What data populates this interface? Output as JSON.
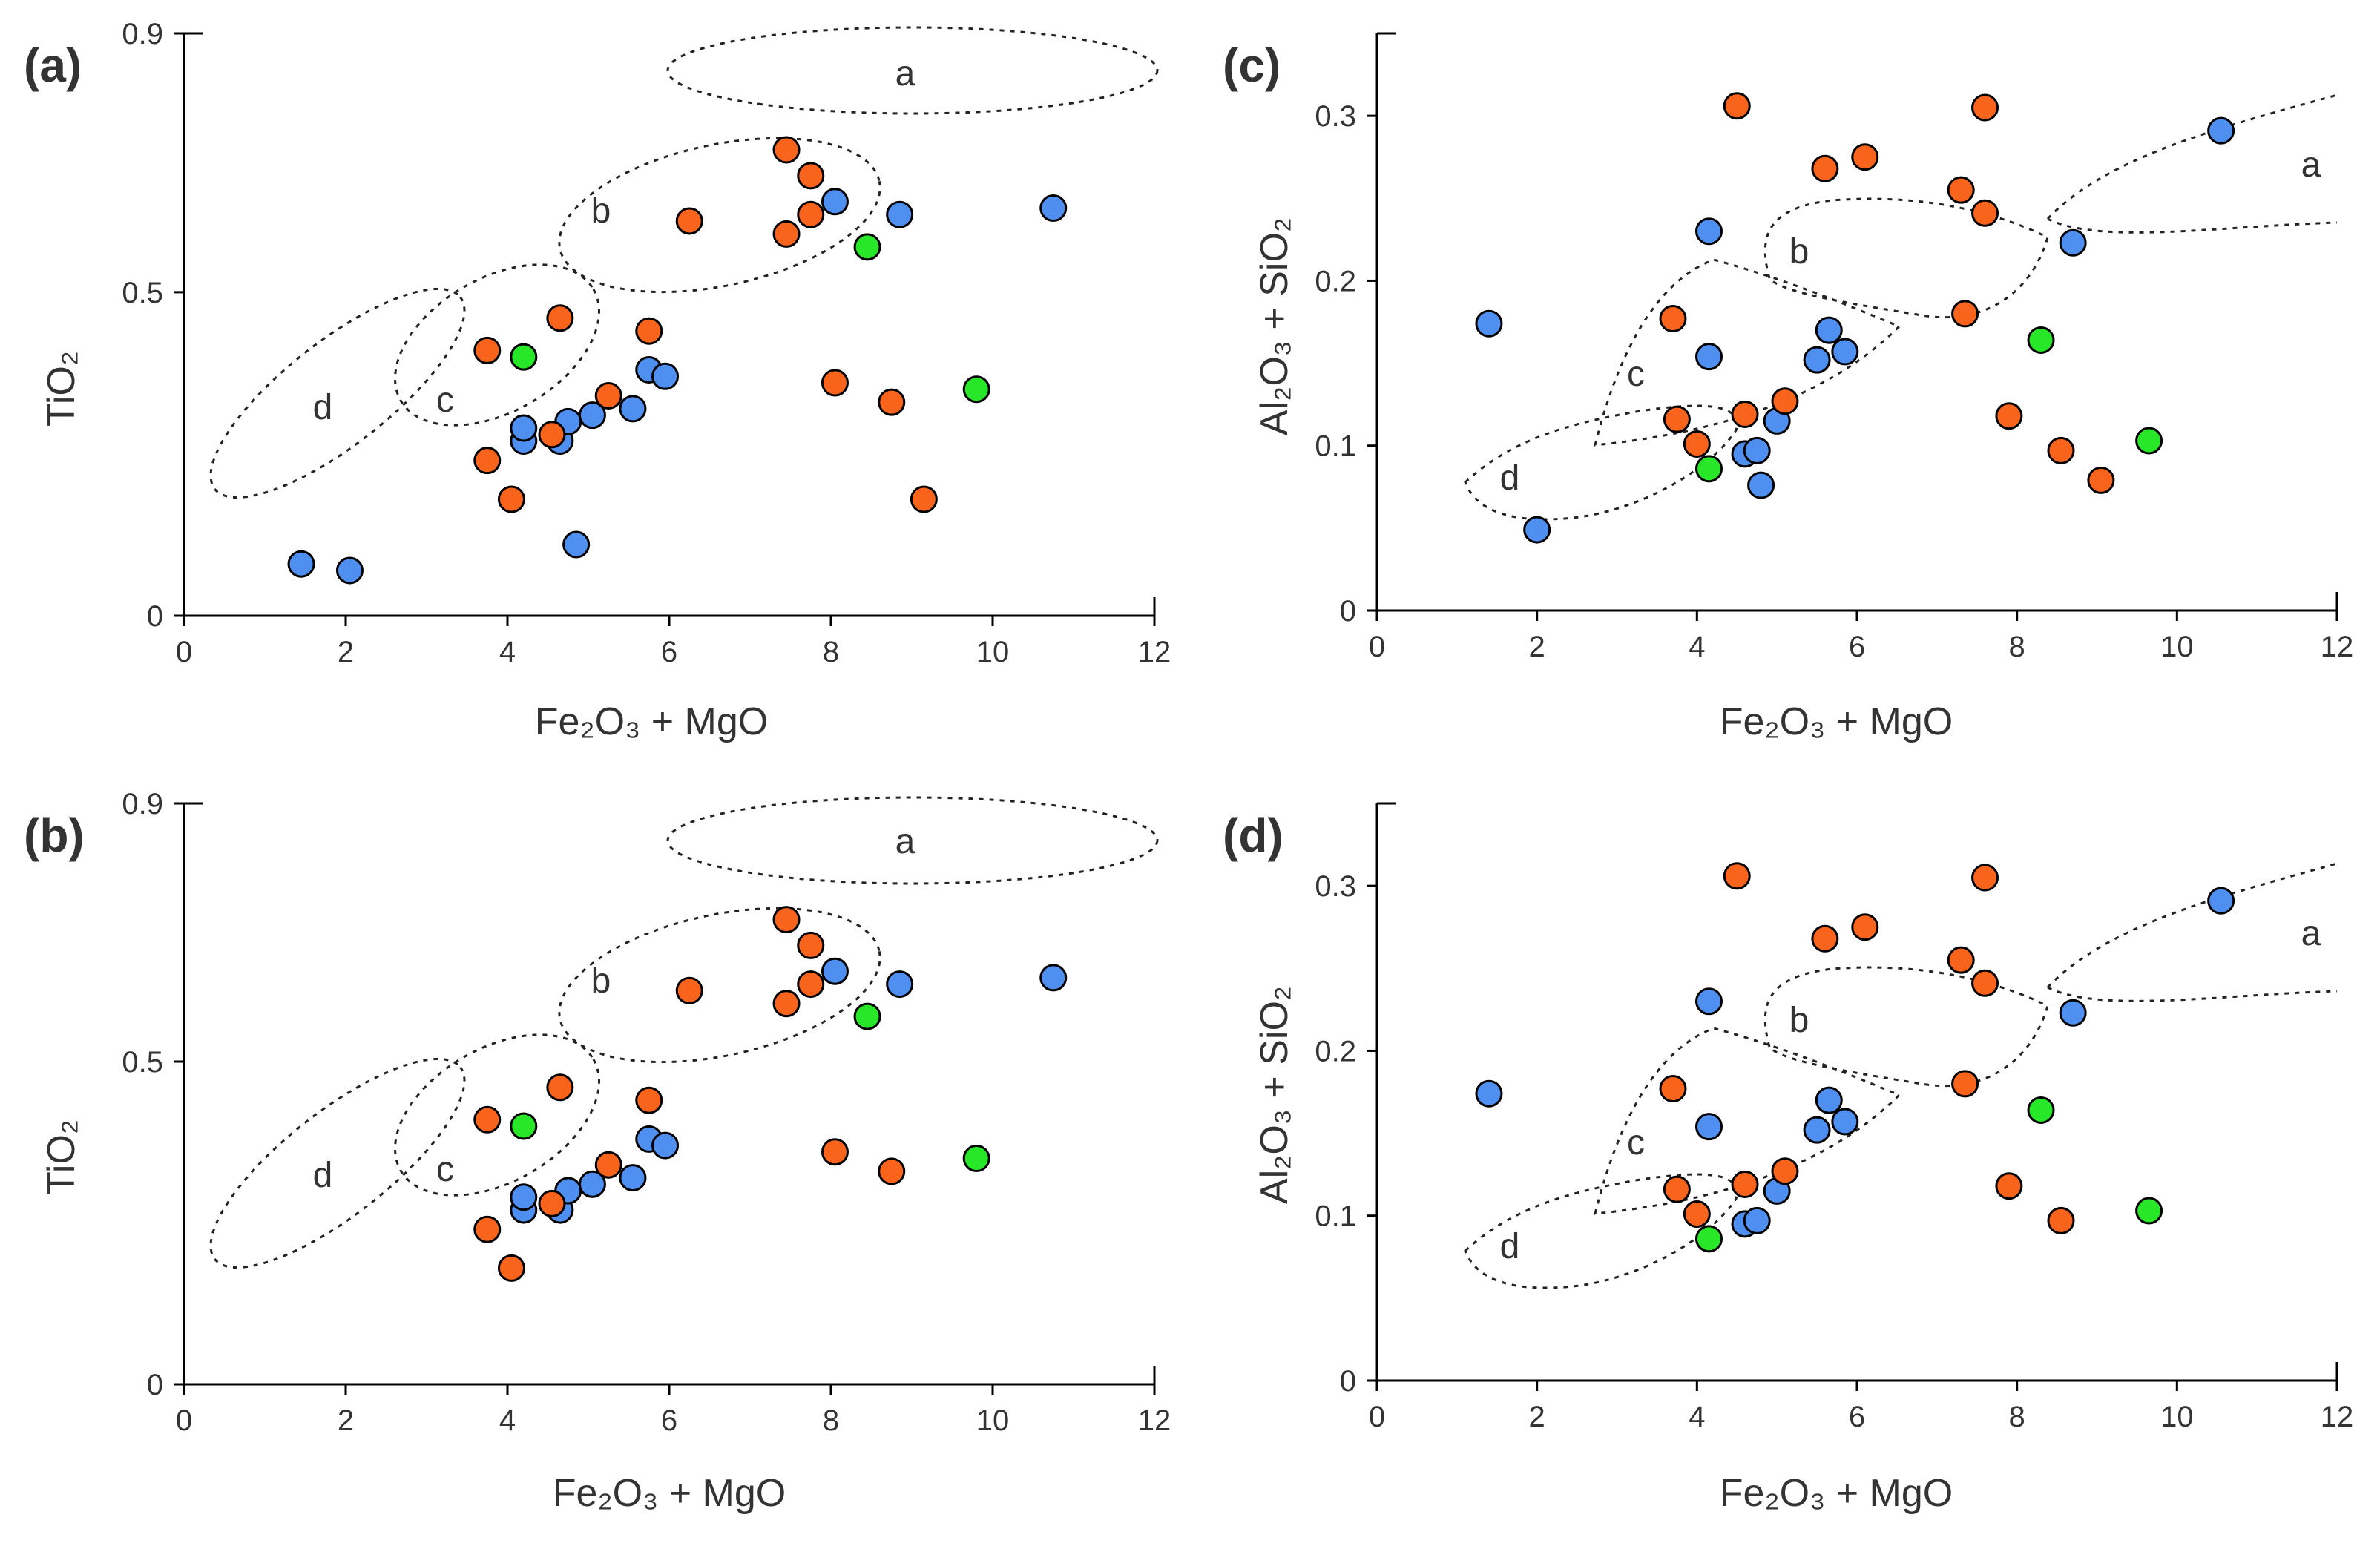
{
  "colors": {
    "blue": "#4f8ff0",
    "orange": "#f9641c",
    "green": "#28e628"
  },
  "chart_data": [
    {
      "type": "scatter",
      "panel": "(a)",
      "xlabel": "Fe₂O₃ + MgO",
      "ylabel": "TiO₂",
      "xlim": [
        0,
        12
      ],
      "ylim": [
        0,
        0.9
      ],
      "xticks": [
        0,
        2,
        4,
        6,
        8,
        10,
        12
      ],
      "yticks": [
        0,
        0.5,
        0.9
      ],
      "tick_labels_x": [
        "0",
        "2",
        "4",
        "6",
        "8",
        "10",
        "12"
      ],
      "tick_labels_y": [
        "0",
        "0.5",
        "0.9"
      ],
      "fields": [
        "a",
        "b",
        "c",
        "d"
      ],
      "series": [
        {
          "color": "blue",
          "points": [
            [
              1.45,
              0.08
            ],
            [
              2.05,
              0.07
            ],
            [
              4.2,
              0.27
            ],
            [
              4.2,
              0.29
            ],
            [
              4.65,
              0.27
            ],
            [
              4.75,
              0.3
            ],
            [
              5.05,
              0.31
            ],
            [
              5.55,
              0.32
            ],
            [
              5.75,
              0.38
            ],
            [
              5.95,
              0.37
            ],
            [
              4.85,
              0.11
            ],
            [
              8.05,
              0.64
            ],
            [
              8.85,
              0.62
            ],
            [
              10.75,
              0.63
            ]
          ]
        },
        {
          "color": "orange",
          "points": [
            [
              3.75,
              0.41
            ],
            [
              3.75,
              0.24
            ],
            [
              4.05,
              0.18
            ],
            [
              4.55,
              0.28
            ],
            [
              4.65,
              0.46
            ],
            [
              5.25,
              0.34
            ],
            [
              5.75,
              0.44
            ],
            [
              6.25,
              0.61
            ],
            [
              7.45,
              0.59
            ],
            [
              7.45,
              0.72
            ],
            [
              7.75,
              0.68
            ],
            [
              7.75,
              0.62
            ],
            [
              8.05,
              0.36
            ],
            [
              8.75,
              0.33
            ],
            [
              9.15,
              0.18
            ]
          ]
        },
        {
          "color": "green",
          "points": [
            [
              4.2,
              0.4
            ],
            [
              8.45,
              0.57
            ],
            [
              9.8,
              0.35
            ]
          ]
        }
      ]
    },
    {
      "type": "scatter",
      "panel": "(b)",
      "xlabel": "Fe₂O₃ + MgO",
      "ylabel": "TiO₂",
      "xlim": [
        0,
        12
      ],
      "ylim": [
        0,
        0.9
      ],
      "xticks": [
        0,
        2,
        4,
        6,
        8,
        10,
        12
      ],
      "yticks": [
        0,
        0.5,
        0.9
      ],
      "tick_labels_x": [
        "0",
        "2",
        "4",
        "6",
        "8",
        "10",
        "12"
      ],
      "tick_labels_y": [
        "0",
        "0.5",
        "0.9"
      ],
      "fields": [
        "a",
        "b",
        "c",
        "d"
      ],
      "series": [
        {
          "color": "blue",
          "points": [
            [
              4.2,
              0.27
            ],
            [
              4.2,
              0.29
            ],
            [
              4.65,
              0.27
            ],
            [
              4.75,
              0.3
            ],
            [
              5.05,
              0.31
            ],
            [
              5.55,
              0.32
            ],
            [
              5.75,
              0.38
            ],
            [
              5.95,
              0.37
            ],
            [
              8.05,
              0.64
            ],
            [
              8.85,
              0.62
            ],
            [
              10.75,
              0.63
            ]
          ]
        },
        {
          "color": "orange",
          "points": [
            [
              3.75,
              0.41
            ],
            [
              3.75,
              0.24
            ],
            [
              4.05,
              0.18
            ],
            [
              4.55,
              0.28
            ],
            [
              4.65,
              0.46
            ],
            [
              5.25,
              0.34
            ],
            [
              5.75,
              0.44
            ],
            [
              6.25,
              0.61
            ],
            [
              7.45,
              0.59
            ],
            [
              7.45,
              0.72
            ],
            [
              7.75,
              0.68
            ],
            [
              7.75,
              0.62
            ],
            [
              8.05,
              0.36
            ],
            [
              8.75,
              0.33
            ]
          ]
        },
        {
          "color": "green",
          "points": [
            [
              4.2,
              0.4
            ],
            [
              8.45,
              0.57
            ],
            [
              9.8,
              0.35
            ]
          ]
        }
      ]
    },
    {
      "type": "scatter",
      "panel": "(c)",
      "xlabel": "Fe₂O₃ + MgO",
      "ylabel": "Al₂O₃ + SiO₂",
      "xlim": [
        0,
        12
      ],
      "ylim": [
        0,
        0.35
      ],
      "xticks": [
        0,
        2,
        4,
        6,
        8,
        10,
        12
      ],
      "yticks": [
        0,
        0.1,
        0.2,
        0.3
      ],
      "tick_labels_x": [
        "0",
        "2",
        "4",
        "6",
        "8",
        "10",
        "12"
      ],
      "tick_labels_y": [
        "0",
        "0.1",
        "0.2",
        "0.3"
      ],
      "fields": [
        "a",
        "b",
        "c",
        "d"
      ],
      "series": [
        {
          "color": "blue",
          "points": [
            [
              1.4,
              0.174
            ],
            [
              2.0,
              0.049
            ],
            [
              4.15,
              0.23
            ],
            [
              4.15,
              0.154
            ],
            [
              4.6,
              0.095
            ],
            [
              4.75,
              0.097
            ],
            [
              4.8,
              0.076
            ],
            [
              5.0,
              0.115
            ],
            [
              5.5,
              0.152
            ],
            [
              5.65,
              0.17
            ],
            [
              5.85,
              0.157
            ],
            [
              8.7,
              0.223
            ],
            [
              10.55,
              0.291
            ]
          ]
        },
        {
          "color": "orange",
          "points": [
            [
              3.7,
              0.177
            ],
            [
              3.75,
              0.116
            ],
            [
              4.0,
              0.101
            ],
            [
              4.5,
              0.306
            ],
            [
              4.6,
              0.119
            ],
            [
              5.1,
              0.127
            ],
            [
              5.6,
              0.268
            ],
            [
              6.1,
              0.275
            ],
            [
              7.3,
              0.255
            ],
            [
              7.35,
              0.18
            ],
            [
              7.6,
              0.305
            ],
            [
              7.6,
              0.241
            ],
            [
              7.9,
              0.118
            ],
            [
              8.55,
              0.097
            ],
            [
              9.05,
              0.079
            ]
          ]
        },
        {
          "color": "green",
          "points": [
            [
              4.15,
              0.086
            ],
            [
              8.3,
              0.164
            ],
            [
              9.65,
              0.103
            ]
          ]
        }
      ]
    },
    {
      "type": "scatter",
      "panel": "(d)",
      "xlabel": "Fe₂O₃ + MgO",
      "ylabel": "Al₂O₃ + SiO₂",
      "xlim": [
        0,
        12
      ],
      "ylim": [
        0,
        0.35
      ],
      "xticks": [
        0,
        2,
        4,
        6,
        8,
        10,
        12
      ],
      "yticks": [
        0,
        0.1,
        0.2,
        0.3
      ],
      "tick_labels_x": [
        "0",
        "2",
        "4",
        "6",
        "8",
        "10",
        "12"
      ],
      "tick_labels_y": [
        "0",
        "0.1",
        "0.2",
        "0.3"
      ],
      "fields": [
        "a",
        "b",
        "c",
        "d"
      ],
      "series": [
        {
          "color": "blue",
          "points": [
            [
              1.4,
              0.174
            ],
            [
              4.15,
              0.23
            ],
            [
              4.15,
              0.154
            ],
            [
              4.6,
              0.095
            ],
            [
              4.75,
              0.097
            ],
            [
              5.0,
              0.115
            ],
            [
              5.5,
              0.152
            ],
            [
              5.65,
              0.17
            ],
            [
              5.85,
              0.157
            ],
            [
              8.7,
              0.223
            ],
            [
              10.55,
              0.291
            ]
          ]
        },
        {
          "color": "orange",
          "points": [
            [
              3.7,
              0.177
            ],
            [
              3.75,
              0.116
            ],
            [
              4.0,
              0.101
            ],
            [
              4.5,
              0.306
            ],
            [
              4.6,
              0.119
            ],
            [
              5.1,
              0.127
            ],
            [
              5.6,
              0.268
            ],
            [
              6.1,
              0.275
            ],
            [
              7.3,
              0.255
            ],
            [
              7.35,
              0.18
            ],
            [
              7.6,
              0.305
            ],
            [
              7.6,
              0.241
            ],
            [
              7.9,
              0.118
            ],
            [
              8.55,
              0.097
            ]
          ]
        },
        {
          "color": "green",
          "points": [
            [
              4.15,
              0.086
            ],
            [
              8.3,
              0.164
            ],
            [
              9.65,
              0.103
            ]
          ]
        }
      ]
    }
  ]
}
